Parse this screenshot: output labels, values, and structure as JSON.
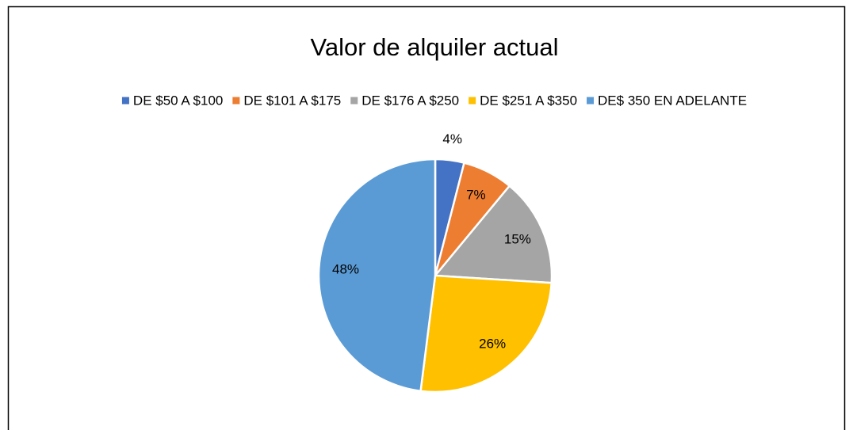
{
  "chart_data": {
    "type": "pie",
    "title": "Valor de alquiler actual",
    "categories": [
      "DE $50 A $100",
      "DE $101 A $175",
      "DE $176 A $250",
      "DE $251 A $350",
      "DE$ 350 EN ADELANTE"
    ],
    "values": [
      4,
      7,
      15,
      26,
      48
    ],
    "value_labels": [
      "4%",
      "7%",
      "15%",
      "26%",
      "48%"
    ],
    "colors": [
      "#4472c4",
      "#ed7d31",
      "#a5a5a5",
      "#ffc000",
      "#5b9bd5"
    ],
    "legend": "top"
  }
}
